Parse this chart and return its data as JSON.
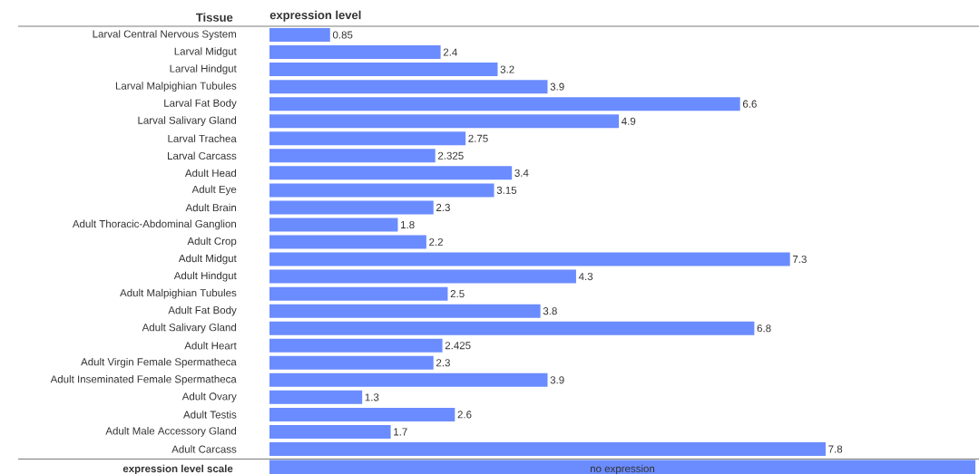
{
  "chart_data": {
    "type": "bar",
    "orientation": "horizontal",
    "xlabel": "expression level",
    "ylabel": "Tissue",
    "categories": [
      "Larval Central Nervous System",
      "Larval Midgut",
      "Larval Hindgut",
      "Larval Malpighian Tubules",
      "Larval Fat Body",
      "Larval Salivary Gland",
      "Larval Trachea",
      "Larval Carcass",
      "Adult Head",
      "Adult Eye",
      "Adult Brain",
      "Adult Thoracic-Abdominal Ganglion",
      "Adult Crop",
      "Adult Midgut",
      "Adult Hindgut",
      "Adult Malpighian Tubules",
      "Adult Fat Body",
      "Adult Salivary Gland",
      "Adult Heart",
      "Adult Virgin Female Spermatheca",
      "Adult Inseminated Female Spermatheca",
      "Adult Ovary",
      "Adult Testis",
      "Adult Male Accessory Gland",
      "Adult Carcass"
    ],
    "values": [
      0.85,
      2.4,
      3.2,
      3.9,
      6.6,
      4.9,
      2.75,
      2.325,
      3.4,
      3.15,
      2.3,
      1.8,
      2.2,
      7.3,
      4.3,
      2.5,
      3.8,
      6.8,
      2.425,
      2.3,
      3.9,
      1.3,
      2.6,
      1.7,
      7.8
    ],
    "color": "#6b8cff",
    "data_labels": true,
    "xlim": [
      0,
      9.9
    ],
    "tick_labels": "y",
    "annotations": [
      "expression level scale",
      "no expression"
    ]
  }
}
